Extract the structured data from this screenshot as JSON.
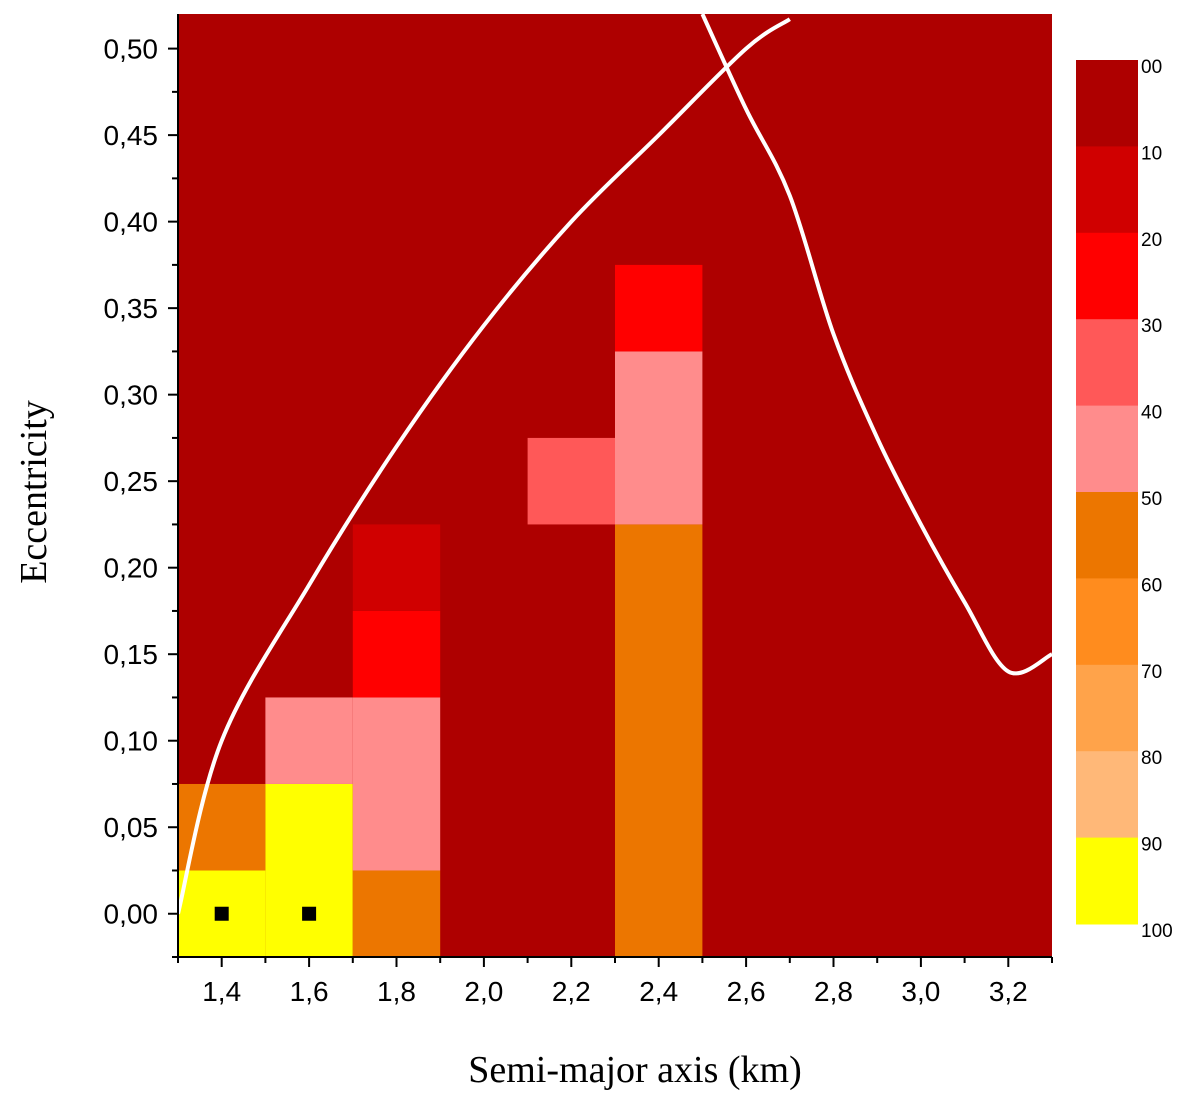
{
  "chart_data": {
    "type": "heatmap",
    "xlabel": "Semi-major axis (km)",
    "ylabel": "Eccentricity",
    "xlim": [
      1.3,
      3.3
    ],
    "ylim": [
      -0.025,
      0.52
    ],
    "x_ticks": [
      {
        "value": 1.4,
        "label": "1,4"
      },
      {
        "value": 1.6,
        "label": "1,6"
      },
      {
        "value": 1.8,
        "label": "1,8"
      },
      {
        "value": 2.0,
        "label": "2,0"
      },
      {
        "value": 2.2,
        "label": "2,2"
      },
      {
        "value": 2.4,
        "label": "2,4"
      },
      {
        "value": 2.6,
        "label": "2,6"
      },
      {
        "value": 2.8,
        "label": "2,8"
      },
      {
        "value": 3.0,
        "label": "3,0"
      },
      {
        "value": 3.2,
        "label": "3,2"
      }
    ],
    "y_ticks": [
      {
        "value": 0.0,
        "label": "0,00"
      },
      {
        "value": 0.05,
        "label": "0,05"
      },
      {
        "value": 0.1,
        "label": "0,10"
      },
      {
        "value": 0.15,
        "label": "0,15"
      },
      {
        "value": 0.2,
        "label": "0,20"
      },
      {
        "value": 0.25,
        "label": "0,25"
      },
      {
        "value": 0.3,
        "label": "0,30"
      },
      {
        "value": 0.35,
        "label": "0,35"
      },
      {
        "value": 0.4,
        "label": "0,40"
      },
      {
        "value": 0.45,
        "label": "0,45"
      },
      {
        "value": 0.5,
        "label": "0,50"
      }
    ],
    "background_color": "#ae0000",
    "colorbar": {
      "labels": [
        "00",
        "10",
        "20",
        "30",
        "40",
        "50",
        "60",
        "70",
        "80",
        "90",
        "100"
      ],
      "colors": [
        "#ae0000",
        "#d00000",
        "#ff0000",
        "#ff5858",
        "#ff8c8c",
        "#ec7600",
        "#ff8c1e",
        "#ffa34a",
        "#ffb878",
        "#ffff00"
      ]
    },
    "cells": [
      {
        "a": [
          1.3,
          1.5
        ],
        "e": [
          -0.025,
          0.025
        ],
        "color": "#ffff00"
      },
      {
        "a": [
          1.3,
          1.5
        ],
        "e": [
          0.025,
          0.075
        ],
        "color": "#ec7600"
      },
      {
        "a": [
          1.5,
          1.7
        ],
        "e": [
          -0.025,
          0.075
        ],
        "color": "#ffff00"
      },
      {
        "a": [
          1.5,
          1.7
        ],
        "e": [
          0.075,
          0.125
        ],
        "color": "#ff8c8c"
      },
      {
        "a": [
          1.7,
          1.9
        ],
        "e": [
          -0.025,
          0.025
        ],
        "color": "#ec7600"
      },
      {
        "a": [
          1.7,
          1.9
        ],
        "e": [
          0.025,
          0.125
        ],
        "color": "#ff8c8c"
      },
      {
        "a": [
          1.7,
          1.9
        ],
        "e": [
          0.125,
          0.175
        ],
        "color": "#ff0000"
      },
      {
        "a": [
          1.7,
          1.9
        ],
        "e": [
          0.175,
          0.225
        ],
        "color": "#d00000"
      },
      {
        "a": [
          2.1,
          2.3
        ],
        "e": [
          0.225,
          0.275
        ],
        "color": "#ff5858"
      },
      {
        "a": [
          2.3,
          2.5
        ],
        "e": [
          -0.025,
          0.225
        ],
        "color": "#ec7600"
      },
      {
        "a": [
          2.3,
          2.5
        ],
        "e": [
          0.225,
          0.325
        ],
        "color": "#ff8c8c"
      },
      {
        "a": [
          2.3,
          2.5
        ],
        "e": [
          0.325,
          0.375
        ],
        "color": "#ff0000"
      }
    ],
    "markers": [
      {
        "x": 1.4,
        "y": 0.0
      },
      {
        "x": 1.6,
        "y": 0.0
      }
    ],
    "curves": [
      {
        "points": [
          [
            1.3,
            0.0
          ],
          [
            1.4,
            0.1
          ],
          [
            1.6,
            0.19
          ],
          [
            1.8,
            0.27
          ],
          [
            2.0,
            0.34
          ],
          [
            2.2,
            0.4
          ],
          [
            2.4,
            0.45
          ],
          [
            2.6,
            0.5
          ],
          [
            2.7,
            0.517
          ]
        ]
      },
      {
        "points": [
          [
            2.5,
            0.52
          ],
          [
            2.6,
            0.465
          ],
          [
            2.7,
            0.415
          ],
          [
            2.8,
            0.335
          ],
          [
            2.9,
            0.275
          ],
          [
            3.0,
            0.225
          ],
          [
            3.1,
            0.18
          ],
          [
            3.2,
            0.14
          ],
          [
            3.3,
            0.15
          ]
        ]
      }
    ]
  }
}
